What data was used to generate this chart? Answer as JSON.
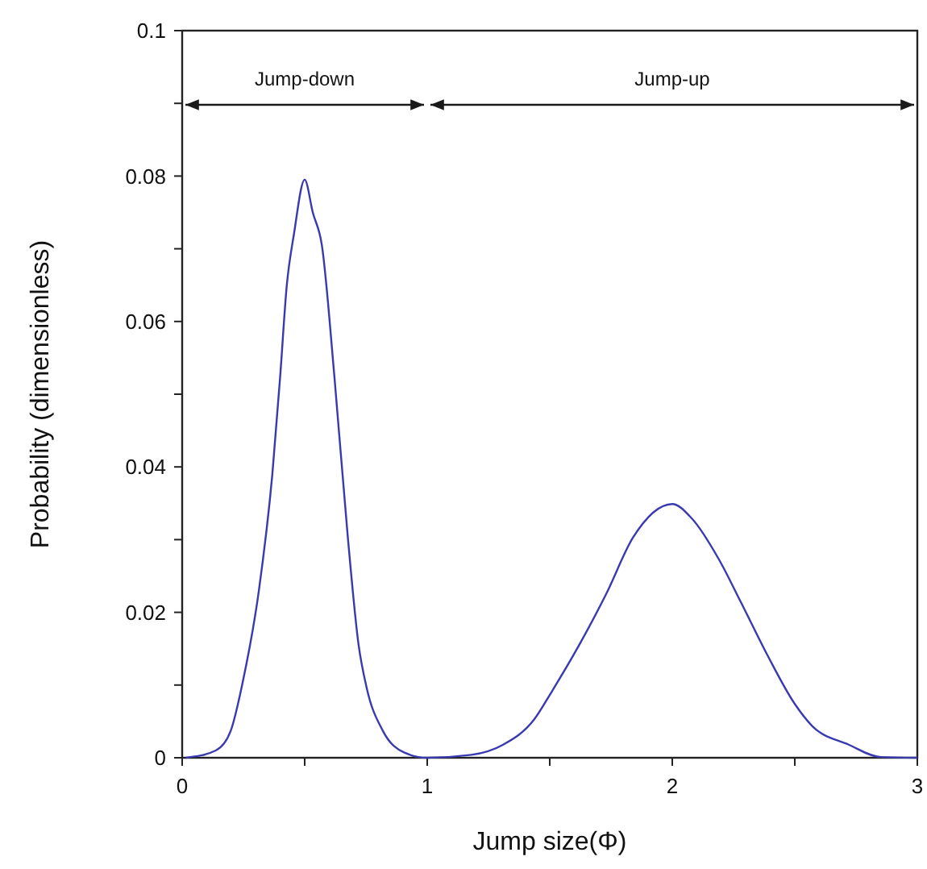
{
  "chart_data": {
    "type": "line",
    "xlabel": "Jump size(Φ)",
    "ylabel": "Probability (dimensionless)",
    "xlim": [
      0,
      3
    ],
    "ylim": [
      0,
      0.1
    ],
    "xticks": [
      0,
      {
        "value": 0.5,
        "label": null
      },
      1,
      {
        "value": 1.5,
        "label": null
      },
      2,
      {
        "value": 2.5,
        "label": null
      },
      3
    ],
    "yticks": [
      0,
      {
        "value": 0.01,
        "label": null
      },
      0.02,
      {
        "value": 0.03,
        "label": null
      },
      0.04,
      {
        "value": 0.05,
        "label": null
      },
      0.06,
      {
        "value": 0.07,
        "label": null
      },
      0.08,
      {
        "value": 0.09,
        "label": null
      },
      0.1
    ],
    "marker": "none",
    "line_style": "solid",
    "annotations": [
      "Jump-down",
      "Jump-up"
    ],
    "series": [
      {
        "color": "#3a3ab0",
        "x": [
          0.015,
          0.137,
          0.198,
          0.247,
          0.313,
          0.368,
          0.4,
          0.427,
          0.456,
          0.5,
          0.533,
          0.57,
          0.621,
          0.676,
          0.72,
          0.753,
          0.819,
          0.907,
          1.0,
          1.18,
          1.31,
          1.435,
          1.51,
          1.62,
          1.73,
          1.84,
          2.0,
          2.08,
          2.19,
          2.28,
          2.39,
          2.5,
          2.57,
          2.72,
          2.85,
          3.0
        ],
        "values": [
          0,
          0.001,
          0.0037,
          0.0104,
          0.023,
          0.039,
          0.0525,
          0.065,
          0.072,
          0.0795,
          0.075,
          0.0705,
          0.0525,
          0.0303,
          0.0155,
          0.0096,
          0.0037,
          0.0007,
          0,
          0.0004,
          0.0018,
          0.0052,
          0.0092,
          0.0155,
          0.0225,
          0.0303,
          0.0349,
          0.0329,
          0.0273,
          0.0214,
          0.014,
          0.0074,
          0.0044,
          0.0018,
          0.0001,
          0
        ]
      }
    ]
  }
}
